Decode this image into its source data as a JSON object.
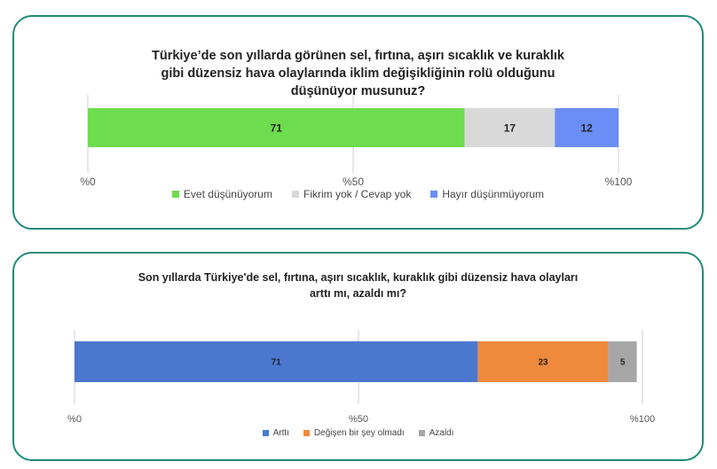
{
  "chart_data": [
    {
      "type": "bar",
      "orientation": "horizontal-stacked",
      "title_lines": [
        "Türkiye’de son yıllarda görünen sel, fırtına, aşırı sıcaklık ve kuraklık",
        "gibi düzensiz hava olaylarında iklim değişikliğinin rolü olduğunu",
        "düşünüyor musunuz?"
      ],
      "xlim": [
        0,
        100
      ],
      "x_ticks": [
        "%0",
        "%50",
        "%100"
      ],
      "x_tick_values": [
        0,
        50,
        100
      ],
      "grid": true,
      "legend_position": "bottom",
      "series": [
        {
          "name": "Evet düşünüyorum",
          "value": 71,
          "label": "71",
          "color": "#6ddc4f"
        },
        {
          "name": "Fikrim yok / Cevap yok",
          "value": 17,
          "label": "17",
          "color": "#d9d9d9"
        },
        {
          "name": "Hayır düşünmüyorum",
          "value": 12,
          "label": "12",
          "color": "#6a8ef5"
        }
      ]
    },
    {
      "type": "bar",
      "orientation": "horizontal-stacked",
      "title_lines": [
        "Son yıllarda Türkiye'de sel, fırtına, aşırı sıcaklık, kuraklık gibi düzensiz hava olayları",
        "arttı mı, azaldı mı?"
      ],
      "xlim": [
        0,
        100
      ],
      "x_ticks": [
        "%0",
        "%50",
        "%100"
      ],
      "x_tick_values": [
        0,
        50,
        100
      ],
      "grid": true,
      "legend_position": "bottom",
      "series": [
        {
          "name": "Arttı",
          "value": 71,
          "label": "71",
          "color": "#4a78cf"
        },
        {
          "name": "Değişen bir şey olmadı",
          "value": 23,
          "label": "23",
          "color": "#ef8a3c"
        },
        {
          "name": "Azaldı",
          "value": 5,
          "label": "5",
          "color": "#a6a6a6"
        }
      ]
    }
  ]
}
